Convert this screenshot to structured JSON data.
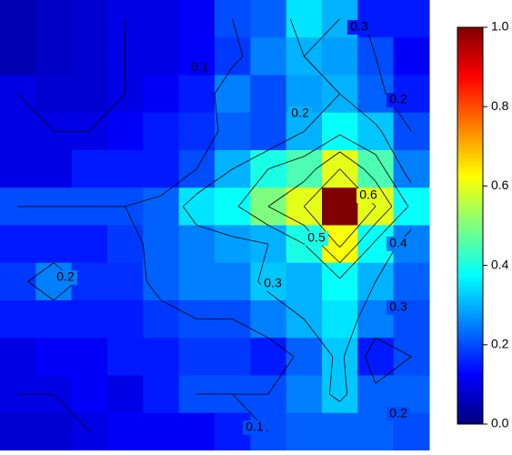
{
  "chart_data": {
    "type": "heatmap",
    "z": [
      [
        0.05,
        0.07,
        0.08,
        0.1,
        0.1,
        0.12,
        0.2,
        0.22,
        0.35,
        0.3,
        0.15,
        0.15
      ],
      [
        0.05,
        0.07,
        0.08,
        0.1,
        0.1,
        0.12,
        0.18,
        0.25,
        0.3,
        0.28,
        0.2,
        0.12
      ],
      [
        0.1,
        0.08,
        0.08,
        0.1,
        0.12,
        0.15,
        0.25,
        0.2,
        0.28,
        0.3,
        0.22,
        0.15
      ],
      [
        0.1,
        0.1,
        0.1,
        0.12,
        0.15,
        0.17,
        0.22,
        0.2,
        0.3,
        0.38,
        0.32,
        0.2
      ],
      [
        0.1,
        0.1,
        0.15,
        0.15,
        0.15,
        0.2,
        0.3,
        0.4,
        0.45,
        0.6,
        0.45,
        0.25
      ],
      [
        0.2,
        0.2,
        0.2,
        0.2,
        0.22,
        0.35,
        0.38,
        0.5,
        0.6,
        1.0,
        0.6,
        0.38
      ],
      [
        0.15,
        0.15,
        0.15,
        0.18,
        0.22,
        0.25,
        0.28,
        0.3,
        0.4,
        0.62,
        0.38,
        0.25
      ],
      [
        0.18,
        0.25,
        0.17,
        0.17,
        0.22,
        0.25,
        0.25,
        0.32,
        0.3,
        0.38,
        0.3,
        0.22
      ],
      [
        0.15,
        0.15,
        0.15,
        0.15,
        0.18,
        0.2,
        0.2,
        0.25,
        0.3,
        0.35,
        0.25,
        0.2
      ],
      [
        0.1,
        0.12,
        0.12,
        0.15,
        0.15,
        0.18,
        0.18,
        0.15,
        0.22,
        0.32,
        0.15,
        0.2
      ],
      [
        0.1,
        0.1,
        0.12,
        0.1,
        0.15,
        0.2,
        0.2,
        0.2,
        0.25,
        0.32,
        0.22,
        0.22
      ],
      [
        0.08,
        0.08,
        0.1,
        0.12,
        0.12,
        0.12,
        0.15,
        0.2,
        0.22,
        0.22,
        0.22,
        0.2
      ]
    ],
    "colormap": [
      "#00007f",
      "#0000ff",
      "#007fff",
      "#00ffff",
      "#7fff7f",
      "#ffff00",
      "#ff7f00",
      "#ff0000",
      "#7f0000"
    ],
    "zlim": [
      0,
      1
    ],
    "zticks": [
      {
        "value": 0,
        "label": "0.0"
      },
      0.2,
      0.4,
      0.6,
      0.8,
      {
        "value": 1,
        "label": "1.0"
      }
    ],
    "contour_levels": [
      0.1,
      0.2,
      0.3,
      0.4,
      0.5,
      0.6
    ]
  }
}
